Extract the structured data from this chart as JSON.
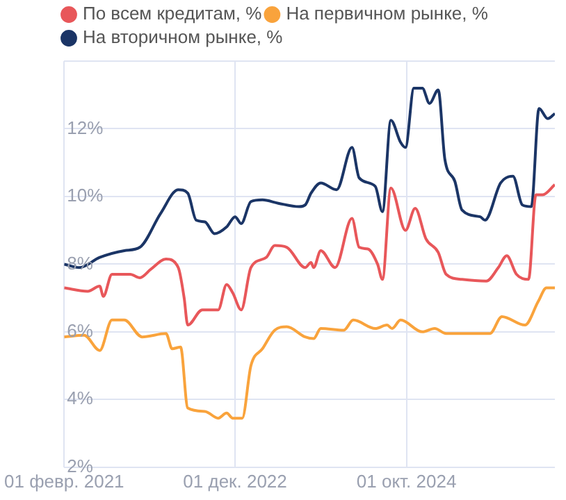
{
  "chart_data": {
    "type": "line",
    "legend": "top left",
    "grid": true,
    "marker": "none",
    "line_style": "solid",
    "xlim": [
      "2021-02-01",
      "2026-05-04"
    ],
    "xticks": [
      {
        "value": "2021-02-01",
        "label": "01 февр. 2021"
      },
      {
        "value": "2022-12-01",
        "label": "01 дек. 2022"
      },
      {
        "value": "2024-10-01",
        "label": "01 окт. 2024"
      }
    ],
    "ylim": [
      2,
      14
    ],
    "yticks": [
      {
        "value": 2,
        "label": "2%"
      },
      {
        "value": 4,
        "label": "4%"
      },
      {
        "value": 6,
        "label": "6%"
      },
      {
        "value": 8,
        "label": "8%"
      },
      {
        "value": 10,
        "label": "10%"
      },
      {
        "value": 12,
        "label": "12%"
      },
      {
        "value": 14,
        "label": null
      }
    ],
    "series": [
      {
        "name": "По всем кредитам, %",
        "color": "#e8575a",
        "x": [
          "2021-02-01",
          "2021-05-04",
          "2021-06-20",
          "2021-07-04",
          "2021-08-07",
          "2021-10-17",
          "2021-11-24",
          "2022-01-06",
          "2022-03-06",
          "2022-04-23",
          "2022-05-16",
          "2022-05-30",
          "2022-07-26",
          "2022-09-26",
          "2022-10-29",
          "2022-11-22",
          "2022-12-25",
          "2023-02-01",
          "2023-04-02",
          "2023-05-05",
          "2023-06-21",
          "2023-09-01",
          "2023-09-24",
          "2023-10-04",
          "2023-11-01",
          "2023-12-27",
          "2024-03-02",
          "2024-03-30",
          "2024-05-03",
          "2024-06-10",
          "2024-06-29",
          "2024-08-01",
          "2024-09-27",
          "2024-11-04",
          "2024-12-16",
          "2025-02-02",
          "2025-03-05",
          "2025-05-06",
          "2025-08-09",
          "2025-09-25",
          "2025-10-28",
          "2025-12-05",
          "2026-01-21",
          "2026-02-19",
          "2026-03-17",
          "2026-05-04"
        ],
        "values": [
          7.3,
          7.2,
          7.35,
          7.05,
          7.7,
          7.7,
          7.6,
          7.85,
          8.15,
          7.9,
          7.0,
          6.2,
          6.65,
          6.65,
          7.4,
          7.15,
          6.65,
          7.9,
          8.2,
          8.55,
          8.5,
          7.9,
          8.05,
          7.9,
          8.4,
          7.9,
          9.35,
          8.5,
          8.45,
          8.0,
          7.55,
          10.25,
          9.0,
          9.65,
          8.75,
          8.35,
          7.7,
          7.55,
          7.5,
          7.9,
          8.25,
          7.7,
          7.55,
          10.05,
          10.05,
          10.35
        ]
      },
      {
        "name": "На первичном рынке, %",
        "color": "#f9a33c",
        "x": [
          "2021-02-01",
          "2021-04-20",
          "2021-06-20",
          "2021-08-07",
          "2021-09-24",
          "2021-12-03",
          "2022-03-06",
          "2022-03-30",
          "2022-05-02",
          "2022-05-30",
          "2022-08-05",
          "2022-09-26",
          "2022-10-29",
          "2022-11-22",
          "2022-12-29",
          "2023-02-01",
          "2023-03-18",
          "2023-05-05",
          "2023-06-21",
          "2023-09-01",
          "2023-10-04",
          "2023-11-01",
          "2024-01-30",
          "2024-03-07",
          "2024-06-01",
          "2024-07-17",
          "2024-08-06",
          "2024-09-08",
          "2024-12-02",
          "2025-01-19",
          "2025-03-05",
          "2025-06-22",
          "2025-08-23",
          "2025-10-09",
          "2026-01-07",
          "2026-02-28",
          "2026-04-01",
          "2026-05-04"
        ],
        "values": [
          5.85,
          5.9,
          5.45,
          6.35,
          6.35,
          5.85,
          5.95,
          5.5,
          5.55,
          3.75,
          3.65,
          3.45,
          3.6,
          3.45,
          3.45,
          5.0,
          5.5,
          6.05,
          6.15,
          5.85,
          5.8,
          6.1,
          6.05,
          6.35,
          6.1,
          6.2,
          6.1,
          6.35,
          6.0,
          6.1,
          5.95,
          5.95,
          5.95,
          6.45,
          6.2,
          6.9,
          7.3,
          7.3
        ]
      },
      {
        "name": "На вторичном рынке, %",
        "color": "#1b3566",
        "x": [
          "2021-02-01",
          "2021-04-01",
          "2021-06-20",
          "2021-09-24",
          "2021-11-24",
          "2022-02-13",
          "2022-04-23",
          "2022-05-30",
          "2022-07-02",
          "2022-08-05",
          "2022-09-12",
          "2022-10-29",
          "2022-12-01",
          "2022-12-25",
          "2023-02-01",
          "2023-03-18",
          "2023-05-19",
          "2023-08-08",
          "2023-09-01",
          "2023-09-24",
          "2023-11-01",
          "2024-01-02",
          "2024-03-02",
          "2024-03-30",
          "2024-06-01",
          "2024-06-29",
          "2024-08-01",
          "2024-09-08",
          "2024-09-27",
          "2024-10-30",
          "2024-12-02",
          "2024-12-30",
          "2025-02-02",
          "2025-02-28",
          "2025-04-08",
          "2025-05-06",
          "2025-07-16",
          "2025-08-04",
          "2025-10-04",
          "2025-11-21",
          "2025-12-28",
          "2026-02-01",
          "2026-03-03",
          "2026-04-06",
          "2026-05-04"
        ],
        "values": [
          8.0,
          7.9,
          8.2,
          8.4,
          8.5,
          9.5,
          10.2,
          10.1,
          9.3,
          9.25,
          8.9,
          9.1,
          9.4,
          9.2,
          9.85,
          9.9,
          9.8,
          9.7,
          9.75,
          10.1,
          10.4,
          10.2,
          11.45,
          10.55,
          10.3,
          9.55,
          12.25,
          11.6,
          11.45,
          13.2,
          13.2,
          12.75,
          13.15,
          11.1,
          10.45,
          9.6,
          9.4,
          9.3,
          10.4,
          10.6,
          9.75,
          9.7,
          12.6,
          12.3,
          12.45
        ]
      }
    ]
  }
}
